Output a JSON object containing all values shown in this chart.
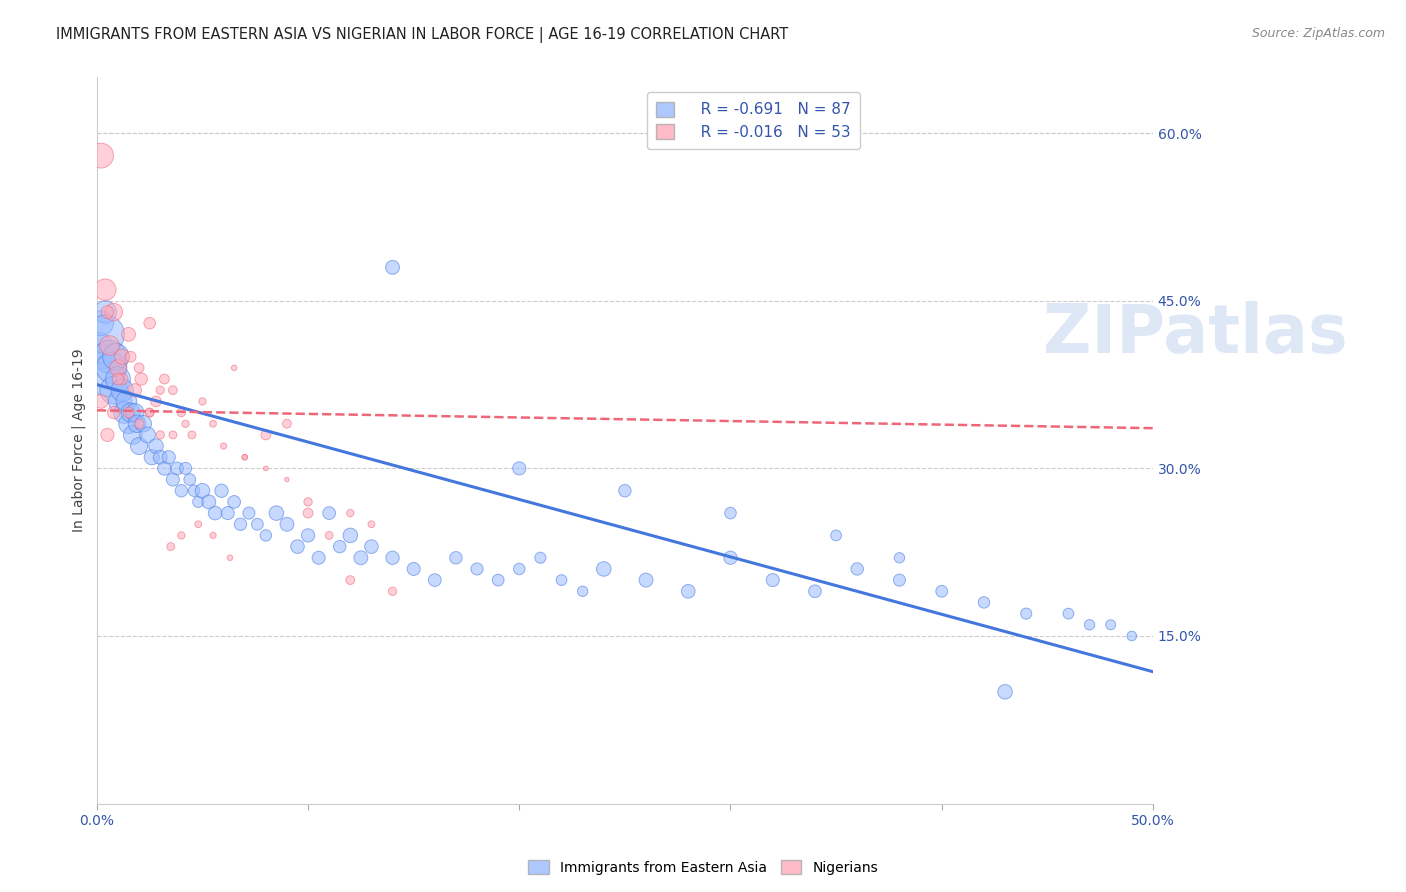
{
  "title": "IMMIGRANTS FROM EASTERN ASIA VS NIGERIAN IN LABOR FORCE | AGE 16-19 CORRELATION CHART",
  "source": "Source: ZipAtlas.com",
  "ylabel": "In Labor Force | Age 16-19",
  "watermark": "ZIPatlas",
  "x_min": 0.0,
  "x_max": 0.5,
  "y_min": 0.0,
  "y_max": 0.65,
  "y_tick_labels_right": [
    "60.0%",
    "45.0%",
    "30.0%",
    "15.0%"
  ],
  "y_tick_vals_right": [
    0.6,
    0.45,
    0.3,
    0.15
  ],
  "grid_color": "#cccccc",
  "background_color": "#ffffff",
  "blue_color": "#99bbff",
  "pink_color": "#ffaabb",
  "blue_line_color": "#4477dd",
  "pink_line_color": "#ee6677",
  "axis_color": "#3355aa",
  "legend_R_blue": "-0.691",
  "legend_N_blue": "87",
  "legend_R_pink": "-0.016",
  "legend_N_pink": "53",
  "blue_scatter_x": [
    0.001,
    0.002,
    0.003,
    0.004,
    0.004,
    0.005,
    0.006,
    0.007,
    0.008,
    0.009,
    0.01,
    0.011,
    0.012,
    0.013,
    0.014,
    0.015,
    0.016,
    0.017,
    0.018,
    0.019,
    0.02,
    0.022,
    0.024,
    0.026,
    0.028,
    0.03,
    0.032,
    0.034,
    0.036,
    0.038,
    0.04,
    0.042,
    0.044,
    0.046,
    0.048,
    0.05,
    0.053,
    0.056,
    0.059,
    0.062,
    0.065,
    0.068,
    0.072,
    0.076,
    0.08,
    0.085,
    0.09,
    0.095,
    0.1,
    0.105,
    0.11,
    0.115,
    0.12,
    0.125,
    0.13,
    0.14,
    0.15,
    0.16,
    0.17,
    0.18,
    0.19,
    0.2,
    0.21,
    0.22,
    0.23,
    0.24,
    0.26,
    0.28,
    0.3,
    0.32,
    0.34,
    0.36,
    0.38,
    0.4,
    0.42,
    0.44,
    0.46,
    0.47,
    0.48,
    0.49,
    0.14,
    0.2,
    0.25,
    0.3,
    0.35,
    0.38,
    0.43
  ],
  "blue_scatter_y": [
    0.41,
    0.43,
    0.4,
    0.44,
    0.42,
    0.38,
    0.4,
    0.39,
    0.37,
    0.4,
    0.38,
    0.36,
    0.37,
    0.35,
    0.36,
    0.34,
    0.35,
    0.33,
    0.35,
    0.34,
    0.32,
    0.34,
    0.33,
    0.31,
    0.32,
    0.31,
    0.3,
    0.31,
    0.29,
    0.3,
    0.28,
    0.3,
    0.29,
    0.28,
    0.27,
    0.28,
    0.27,
    0.26,
    0.28,
    0.26,
    0.27,
    0.25,
    0.26,
    0.25,
    0.24,
    0.26,
    0.25,
    0.23,
    0.24,
    0.22,
    0.26,
    0.23,
    0.24,
    0.22,
    0.23,
    0.22,
    0.21,
    0.2,
    0.22,
    0.21,
    0.2,
    0.21,
    0.22,
    0.2,
    0.19,
    0.21,
    0.2,
    0.19,
    0.22,
    0.2,
    0.19,
    0.21,
    0.2,
    0.19,
    0.18,
    0.17,
    0.17,
    0.16,
    0.16,
    0.15,
    0.48,
    0.3,
    0.28,
    0.26,
    0.24,
    0.22,
    0.1
  ],
  "blue_scatter_sizes": [
    180,
    160,
    150,
    130,
    380,
    320,
    280,
    240,
    200,
    180,
    160,
    140,
    130,
    120,
    110,
    100,
    95,
    90,
    85,
    80,
    75,
    70,
    65,
    60,
    55,
    50,
    48,
    46,
    44,
    42,
    40,
    38,
    36,
    34,
    32,
    55,
    50,
    48,
    46,
    44,
    42,
    40,
    38,
    36,
    34,
    55,
    50,
    48,
    46,
    44,
    42,
    40,
    55,
    50,
    48,
    46,
    44,
    42,
    40,
    38,
    36,
    34,
    32,
    30,
    28,
    55,
    50,
    48,
    46,
    44,
    42,
    40,
    38,
    36,
    34,
    32,
    30,
    28,
    26,
    24,
    50,
    45,
    40,
    35,
    30,
    28,
    55
  ],
  "pink_scatter_x": [
    0.002,
    0.004,
    0.006,
    0.008,
    0.01,
    0.012,
    0.015,
    0.018,
    0.021,
    0.025,
    0.028,
    0.032,
    0.036,
    0.04,
    0.045,
    0.05,
    0.055,
    0.06,
    0.065,
    0.07,
    0.08,
    0.09,
    0.1,
    0.11,
    0.12,
    0.13,
    0.002,
    0.005,
    0.008,
    0.012,
    0.016,
    0.02,
    0.025,
    0.03,
    0.036,
    0.042,
    0.048,
    0.055,
    0.063,
    0.07,
    0.08,
    0.09,
    0.1,
    0.12,
    0.14,
    0.005,
    0.01,
    0.015,
    0.02,
    0.025,
    0.03,
    0.035,
    0.04
  ],
  "pink_scatter_y": [
    0.58,
    0.46,
    0.41,
    0.44,
    0.39,
    0.4,
    0.42,
    0.37,
    0.38,
    0.43,
    0.36,
    0.38,
    0.37,
    0.35,
    0.33,
    0.36,
    0.34,
    0.32,
    0.39,
    0.31,
    0.33,
    0.34,
    0.27,
    0.24,
    0.26,
    0.25,
    0.36,
    0.33,
    0.35,
    0.38,
    0.4,
    0.39,
    0.35,
    0.37,
    0.33,
    0.34,
    0.25,
    0.24,
    0.22,
    0.31,
    0.3,
    0.29,
    0.26,
    0.2,
    0.19,
    0.44,
    0.38,
    0.35,
    0.34,
    0.35,
    0.33,
    0.23,
    0.24
  ],
  "pink_scatter_sizes": [
    160,
    120,
    100,
    80,
    70,
    60,
    50,
    45,
    40,
    35,
    30,
    25,
    20,
    18,
    16,
    14,
    12,
    10,
    8,
    8,
    25,
    20,
    18,
    16,
    14,
    12,
    50,
    45,
    40,
    35,
    30,
    25,
    20,
    18,
    16,
    14,
    12,
    10,
    8,
    8,
    6,
    5,
    25,
    20,
    18,
    40,
    35,
    30,
    25,
    20,
    18,
    16,
    14
  ],
  "blue_trendline_x": [
    0.0,
    0.5
  ],
  "blue_trendline_y": [
    0.375,
    0.118
  ],
  "pink_trendline_x": [
    0.0,
    0.5
  ],
  "pink_trendline_y": [
    0.352,
    0.336
  ],
  "title_fontsize": 10.5,
  "source_fontsize": 9,
  "label_fontsize": 10,
  "tick_fontsize": 10,
  "legend_fontsize": 11,
  "watermark_color": "#c8d8f0",
  "watermark_alpha": 0.6
}
